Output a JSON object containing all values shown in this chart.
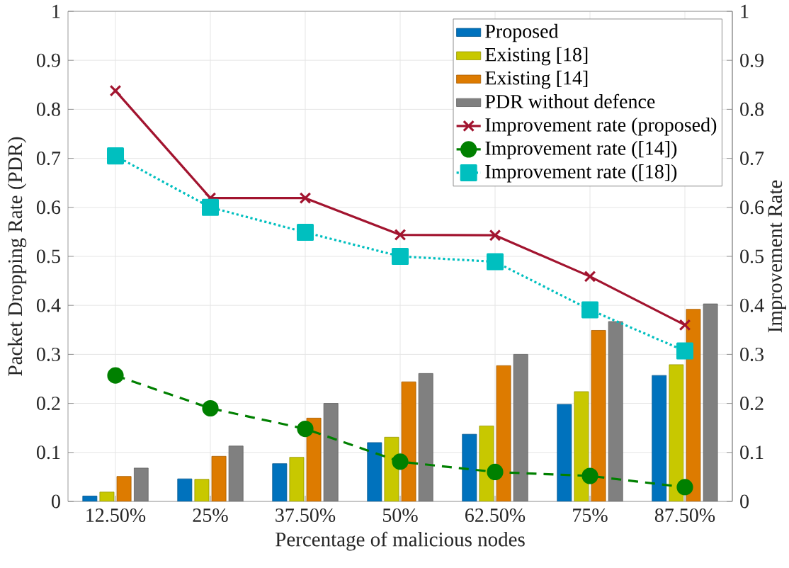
{
  "chart_data": {
    "type": "bar",
    "xlabel": "Percentage of malicious nodes",
    "ylabel": "Packet Dropping Rate (PDR)",
    "y2label": "Improvement Rate",
    "categories": [
      "12.50%",
      "25%",
      "37.50%",
      "50%",
      "62.50%",
      "75%",
      "87.50%"
    ],
    "ylim": [
      0,
      1
    ],
    "yticks": [
      0,
      0.1,
      0.2,
      0.3,
      0.4,
      0.5,
      0.6,
      0.7,
      0.8,
      0.9,
      1
    ],
    "y2lim": [
      0,
      1
    ],
    "y2ticks": [
      0,
      0.1,
      0.2,
      0.3,
      0.4,
      0.5,
      0.6,
      0.7,
      0.8,
      0.9,
      1
    ],
    "grid": true,
    "legend": "top right",
    "series": [
      {
        "name": "Proposed",
        "color": "#0072bd",
        "values": [
          0.011,
          0.046,
          0.077,
          0.12,
          0.137,
          0.198,
          0.257
        ]
      },
      {
        "name": "Existing [18]",
        "color": "#c8c800",
        "values": [
          0.019,
          0.045,
          0.09,
          0.131,
          0.154,
          0.224,
          0.279
        ]
      },
      {
        "name": "Existing [14]",
        "color": "#dd7b00",
        "values": [
          0.051,
          0.092,
          0.17,
          0.244,
          0.277,
          0.349,
          0.392
        ]
      },
      {
        "name": "PDR without defence",
        "color": "#808080",
        "values": [
          0.068,
          0.113,
          0.2,
          0.261,
          0.3,
          0.367,
          0.403
        ]
      },
      {
        "name": "Improvement rate (proposed)",
        "type": "line",
        "axis": "y2",
        "color": "#a2142f",
        "marker": "cross",
        "line_style": "solid",
        "values": [
          0.838,
          0.619,
          0.619,
          0.544,
          0.543,
          0.459,
          0.36
        ]
      },
      {
        "name": "Improvement rate ([14])",
        "type": "line",
        "axis": "y2",
        "color": "#008000",
        "marker": "circle",
        "line_style": "dashed",
        "values": [
          0.257,
          0.19,
          0.148,
          0.081,
          0.06,
          0.052,
          0.029
        ]
      },
      {
        "name": "Improvement rate ([18])",
        "type": "line",
        "axis": "y2",
        "color": "#00bfbf",
        "marker": "square",
        "line_style": "dotted",
        "values": [
          0.705,
          0.6,
          0.549,
          0.5,
          0.489,
          0.391,
          0.307
        ]
      }
    ]
  }
}
